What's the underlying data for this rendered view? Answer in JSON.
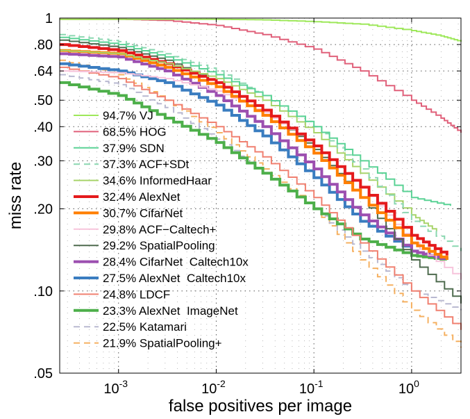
{
  "chart_data": {
    "type": "line",
    "title": "",
    "xlabel": "false positives per image",
    "ylabel": "miss rate",
    "xscale": "log",
    "yscale": "log",
    "xlim": [
      0.00025,
      3.2
    ],
    "ylim": [
      0.05,
      1
    ],
    "grid": true,
    "legend_position": "bottom-left",
    "x_ticks": [
      {
        "value": 0.001,
        "base": "10",
        "exp": "-3"
      },
      {
        "value": 0.01,
        "base": "10",
        "exp": "-2"
      },
      {
        "value": 0.1,
        "base": "10",
        "exp": "-1"
      },
      {
        "value": 1,
        "base": "10",
        "exp": "0"
      }
    ],
    "y_ticks": [
      {
        "value": 0.05,
        "label": ".05"
      },
      {
        "value": 0.1,
        "label": ".10"
      },
      {
        "value": 0.2,
        "label": ".20"
      },
      {
        "value": 0.3,
        "label": ".30"
      },
      {
        "value": 0.4,
        "label": ".40"
      },
      {
        "value": 0.5,
        "label": ".50"
      },
      {
        "value": 0.64,
        "label": ".64"
      },
      {
        "value": 0.8,
        "label": ".80"
      },
      {
        "value": 1,
        "label": "1"
      }
    ],
    "series": [
      {
        "name": "94.7% VJ",
        "color": "#9ee85a",
        "dash": "solid",
        "width": 2,
        "x": [
          0.00025,
          0.003,
          0.01,
          0.03,
          0.1,
          0.3,
          1,
          2,
          3.2
        ],
        "y": [
          0.99,
          0.99,
          0.99,
          0.985,
          0.97,
          0.95,
          0.9,
          0.86,
          0.82
        ]
      },
      {
        "name": "68.5% HOG",
        "color": "#e0607a",
        "dash": "solid",
        "width": 2,
        "x": [
          0.00025,
          0.001,
          0.003,
          0.01,
          0.03,
          0.1,
          0.3,
          1,
          2,
          3.2
        ],
        "y": [
          0.99,
          0.99,
          0.98,
          0.94,
          0.87,
          0.77,
          0.64,
          0.5,
          0.43,
          0.38
        ]
      },
      {
        "name": "37.9% SDN",
        "color": "#5ad295",
        "dash": "solid",
        "width": 2,
        "x": [
          0.00025,
          0.001,
          0.003,
          0.01,
          0.03,
          0.1,
          0.3,
          1,
          2.5
        ],
        "y": [
          0.85,
          0.8,
          0.72,
          0.62,
          0.52,
          0.4,
          0.3,
          0.22,
          0.205
        ]
      },
      {
        "name": "37.3% ACF+SDt",
        "color": "#8ad7b0",
        "dash": "dash",
        "width": 2,
        "x": [
          0.00025,
          0.001,
          0.003,
          0.01,
          0.03,
          0.1,
          0.3,
          1,
          3.2
        ],
        "y": [
          0.87,
          0.82,
          0.74,
          0.64,
          0.52,
          0.4,
          0.28,
          0.18,
          0.14
        ]
      },
      {
        "name": "34.6% InformedHaar",
        "color": "#a8d46a",
        "dash": "solid",
        "width": 2,
        "x": [
          0.00025,
          0.001,
          0.003,
          0.01,
          0.03,
          0.1,
          0.3,
          1,
          1.8
        ],
        "y": [
          0.76,
          0.74,
          0.68,
          0.6,
          0.5,
          0.38,
          0.27,
          0.19,
          0.165
        ]
      },
      {
        "name": "32.4% AlexNet",
        "color": "#e41a1c",
        "dash": "solid",
        "width": 4,
        "x": [
          0.00025,
          0.001,
          0.003,
          0.01,
          0.03,
          0.1,
          0.3,
          1,
          2.3
        ],
        "y": [
          0.8,
          0.76,
          0.68,
          0.58,
          0.46,
          0.34,
          0.24,
          0.16,
          0.135
        ]
      },
      {
        "name": "30.7% CifarNet",
        "color": "#ff7f00",
        "dash": "solid",
        "width": 4,
        "x": [
          0.00025,
          0.001,
          0.003,
          0.01,
          0.03,
          0.1,
          0.3,
          1,
          2.3
        ],
        "y": [
          0.76,
          0.74,
          0.66,
          0.56,
          0.44,
          0.32,
          0.22,
          0.15,
          0.13
        ]
      },
      {
        "name": "29.8% ACF−Caltech+",
        "color": "#f7c4dc",
        "dash": "solid",
        "width": 2,
        "x": [
          0.00025,
          0.001,
          0.003,
          0.01,
          0.03,
          0.1,
          0.3,
          1,
          3.2
        ],
        "y": [
          0.64,
          0.63,
          0.6,
          0.54,
          0.45,
          0.34,
          0.24,
          0.15,
          0.11
        ]
      },
      {
        "name": "29.2% SpatialPooling",
        "color": "#4e6b4e",
        "dash": "solid",
        "width": 2,
        "x": [
          0.00025,
          0.001,
          0.003,
          0.01,
          0.03,
          0.1,
          0.3,
          1,
          3.2
        ],
        "y": [
          0.83,
          0.78,
          0.7,
          0.58,
          0.46,
          0.33,
          0.22,
          0.13,
          0.09
        ]
      },
      {
        "name": "28.4% CifarNet  Caltech10x",
        "color": "#9c4fb0",
        "dash": "solid",
        "width": 4,
        "x": [
          0.00025,
          0.001,
          0.003,
          0.01,
          0.03,
          0.1,
          0.3,
          1,
          2.3
        ],
        "y": [
          0.74,
          0.72,
          0.64,
          0.52,
          0.4,
          0.28,
          0.19,
          0.14,
          0.13
        ]
      },
      {
        "name": "27.5% AlexNet  Caltech10x",
        "color": "#3a7dc0",
        "dash": "solid",
        "width": 4,
        "x": [
          0.00025,
          0.001,
          0.003,
          0.01,
          0.03,
          0.1,
          0.3,
          1,
          2.3
        ],
        "y": [
          0.68,
          0.64,
          0.58,
          0.48,
          0.37,
          0.26,
          0.18,
          0.14,
          0.13
        ]
      },
      {
        "name": "24.8% LDCF",
        "color": "#f08070",
        "dash": "solid",
        "width": 2,
        "x": [
          0.00025,
          0.001,
          0.003,
          0.01,
          0.03,
          0.1,
          0.3,
          1,
          3.2
        ],
        "y": [
          0.66,
          0.6,
          0.5,
          0.4,
          0.31,
          0.22,
          0.15,
          0.1,
          0.072
        ]
      },
      {
        "name": "23.3% AlexNet  ImageNet",
        "color": "#4daf4a",
        "dash": "solid",
        "width": 4,
        "x": [
          0.00025,
          0.001,
          0.003,
          0.01,
          0.03,
          0.1,
          0.3,
          1,
          2.3
        ],
        "y": [
          0.58,
          0.52,
          0.43,
          0.35,
          0.27,
          0.2,
          0.155,
          0.135,
          0.13
        ]
      },
      {
        "name": "22.5% Katamari",
        "color": "#b8b8d0",
        "dash": "dash",
        "width": 2,
        "x": [
          0.00025,
          0.001,
          0.003,
          0.01,
          0.03,
          0.1,
          0.3,
          1,
          3.2
        ],
        "y": [
          0.62,
          0.57,
          0.47,
          0.36,
          0.27,
          0.2,
          0.14,
          0.1,
          0.085
        ]
      },
      {
        "name": "21.9% SpatialPooling+",
        "color": "#f5b060",
        "dash": "dash",
        "width": 2,
        "x": [
          0.00025,
          0.001,
          0.003,
          0.01,
          0.03,
          0.1,
          0.3,
          1,
          3.2
        ],
        "y": [
          0.7,
          0.62,
          0.5,
          0.38,
          0.28,
          0.2,
          0.13,
          0.085,
          0.062
        ]
      }
    ]
  }
}
